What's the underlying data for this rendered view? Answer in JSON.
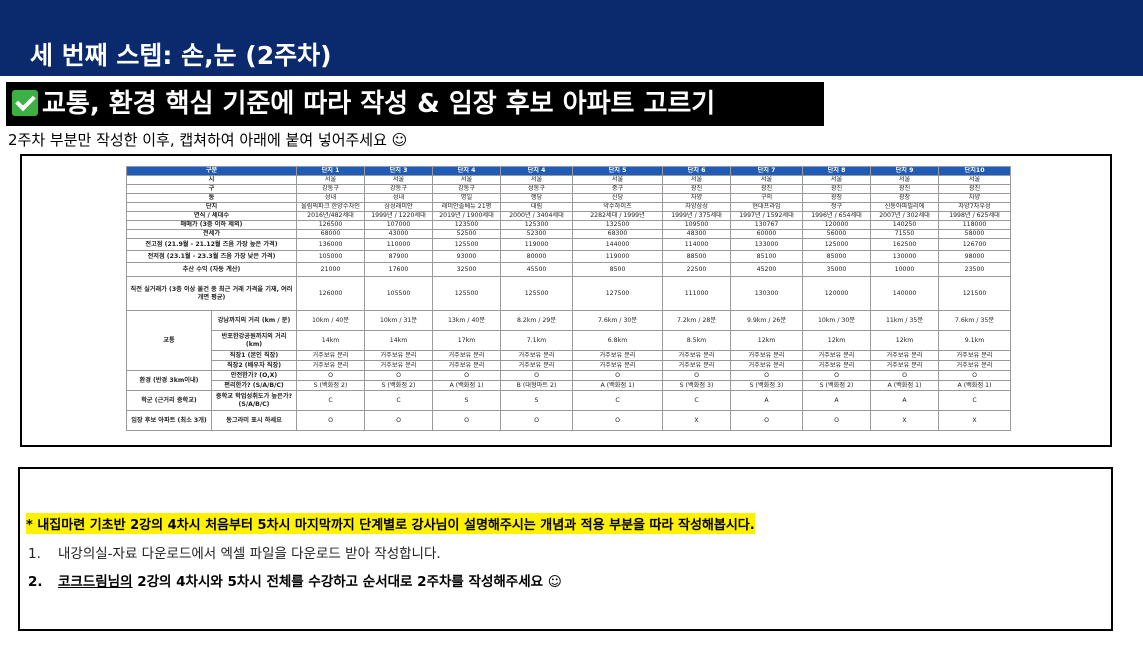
{
  "header": {
    "title": "세 번째 스텝: 손,눈 (2주차)"
  },
  "subtitle": {
    "text": "교통, 환경 핵심 기준에 따라 작성 & 임장 후보 아파트 고르기"
  },
  "instruction": "2주차 부분만 작성한 이후, 캡쳐하여 아래에 붙여 넣어주세요 ☺",
  "table": {
    "header_label": "구분",
    "columns": [
      "단지 1",
      "단지 3",
      "단지 4",
      "단지 4",
      "단지 5",
      "단지 6",
      "단지 7",
      "단지 8",
      "단지 9",
      "단지10"
    ],
    "rows": {
      "si": {
        "label": "시",
        "values": [
          "서울",
          "서울",
          "서울",
          "서울",
          "서울",
          "서울",
          "서울",
          "서울",
          "서울",
          "서울"
        ]
      },
      "gu": {
        "label": "구",
        "values": [
          "강동구",
          "강동구",
          "강동구",
          "성동구",
          "중구",
          "광진",
          "광진",
          "광진",
          "광진",
          "광진"
        ]
      },
      "dong": {
        "label": "동",
        "values": [
          "성내",
          "성내",
          "명일",
          "행당",
          "신당",
          "자양",
          "구의",
          "광장",
          "광장",
          "자양"
        ]
      },
      "danji": {
        "label": "단지",
        "values": [
          "올림픽파크 한양수자인",
          "삼성래미안",
          "래미안솔베뉴 21평",
          "대림",
          "약수하이츠",
          "자양삼성",
          "현대프라임",
          "청구",
          "신동아파밀리에",
          "자양7차우성"
        ]
      },
      "year": {
        "label": "연식 / 세대수",
        "values": [
          "2016년/482세대",
          "1999년 / 1220세대",
          "2019년 / 1900세대",
          "2000년 / 3404세대",
          "2282세대 / 1999년",
          "1999년 / 375세대",
          "1997년 / 1592세대",
          "1996년 / 654세대",
          "2007년 / 302세대",
          "1998년 / 625세대"
        ]
      },
      "price": {
        "label": "매매가 (3층 이하 제외)",
        "values": [
          "126500",
          "107000",
          "123500",
          "125300",
          "132500",
          "109500",
          "130767",
          "120000",
          "140250",
          "118000"
        ]
      },
      "jeonse": {
        "label": "전세가",
        "values": [
          "68000",
          "43000",
          "52500",
          "52300",
          "68300",
          "48300",
          "60000",
          "56000",
          "71550",
          "58000"
        ]
      },
      "high": {
        "label": "전고점 (21.9월 - 21.12월 즈음 가장 높은 가격)",
        "values": [
          "136000",
          "110000",
          "125500",
          "119000",
          "144000",
          "114000",
          "133000",
          "125000",
          "162500",
          "126700"
        ]
      },
      "low": {
        "label": "전저점 (23.1월 - 23.3월 즈음 가장 낮은 가격)",
        "values": [
          "105000",
          "87900",
          "93000",
          "80000",
          "119000",
          "88500",
          "85100",
          "85000",
          "130000",
          "98000"
        ]
      },
      "profit": {
        "label": "추산 수익 (자동 계산)",
        "values": [
          "21000",
          "17600",
          "32500",
          "45500",
          "8500",
          "22500",
          "45200",
          "35000",
          "10000",
          "23500"
        ]
      },
      "recent": {
        "label": "직전 실거래가 (3층 이상 물건 중 최근 거래 가격을 기재, 여러 개면 평균)",
        "values": [
          "126000",
          "105500",
          "125500",
          "125500",
          "127500",
          "111000",
          "130300",
          "120000",
          "140000",
          "121500"
        ]
      },
      "transport_label": "교통",
      "gangnam": {
        "label": "강남까지의 거리 (km / 분)",
        "values": [
          "10km / 40분",
          "10km / 31분",
          "13km / 40분",
          "8.2km / 29분",
          "7.6km / 30분",
          "7.2km / 28분",
          "9.9km / 26분",
          "10km / 30분",
          "11km / 35분",
          "7.6km / 35분"
        ]
      },
      "banpo": {
        "label": "반포한강공원까지의 거리 (km)",
        "values": [
          "14km",
          "14km",
          "17km",
          "7.1km",
          "6.8km",
          "8.5km",
          "12km",
          "12km",
          "12km",
          "9.1km"
        ]
      },
      "job1": {
        "label": "직장1 (본인 직장)",
        "values": [
          "거주보유 분리",
          "거주보유 분리",
          "거주보유 분리",
          "거주보유 분리",
          "거주보유 분리",
          "거주보유 분리",
          "거주보유 분리",
          "거주보유 분리",
          "거주보유 분리",
          "거주보유 분리"
        ]
      },
      "job2": {
        "label": "직장2 (배우자 직장)",
        "values": [
          "거주보유 분리",
          "거주보유 분리",
          "거주보유 분리",
          "거주보유 분리",
          "거주보유 분리",
          "거주보유 분리",
          "거주보유 분리",
          "거주보유 분리",
          "거주보유 분리",
          "거주보유 분리"
        ]
      },
      "env_label": "환경 (반경 3km이내)",
      "safe": {
        "label": "안전한가? (O,X)",
        "values": [
          "O",
          "O",
          "O",
          "O",
          "O",
          "O",
          "O",
          "O",
          "O",
          "O"
        ]
      },
      "conv": {
        "label": "편리한가? (S/A/B/C)",
        "values": [
          "S (백화점 2)",
          "S (백화점 2)",
          "A (백화점 1)",
          "B (대형마트 2)",
          "A (백화점 1)",
          "S (백화점 3)",
          "S (백화점 3)",
          "S (백화점 2)",
          "A (백화점 1)",
          "A (백화점 1)"
        ]
      },
      "school_label": "학군 (근거리 중학교)",
      "school": {
        "label": "중학교 학업성취도가 높은가? (S/A/B/C)",
        "values": [
          "C",
          "C",
          "S",
          "S",
          "C",
          "C",
          "A",
          "A",
          "A",
          "C"
        ]
      },
      "cand_label": "임장 후보 아파트 (최소 3개)",
      "cand": {
        "label": "동그라미 표시 하세요",
        "values": [
          "O",
          "O",
          "O",
          "O",
          "O",
          "X",
          "O",
          "O",
          "X",
          "X"
        ]
      }
    }
  },
  "notes": {
    "highlight": "* 내집마련 기초반 2강의 4차시 처음부터 5차시 마지막까지 단계별로 강사님이 설명해주시는 개념과 적용 부분을 따라 작성해봅시다.",
    "item1_num": "1.",
    "item1_text": "내강의실-자료 다운로드에서 엑셀 파일을 다운로드 받아 작성합니다.",
    "item2_num": "2.",
    "item2_underlined": "코크드림님의",
    "item2_text": " 2강의 4차시와 5차시 전체를 수강하고 순서대로 2주차를 작성해주세요 ☺"
  },
  "colors": {
    "header_bg": "#0b2a6e",
    "table_header_bg": "#1f5bb8",
    "highlight": "#fff200",
    "check": "#3cb043"
  }
}
